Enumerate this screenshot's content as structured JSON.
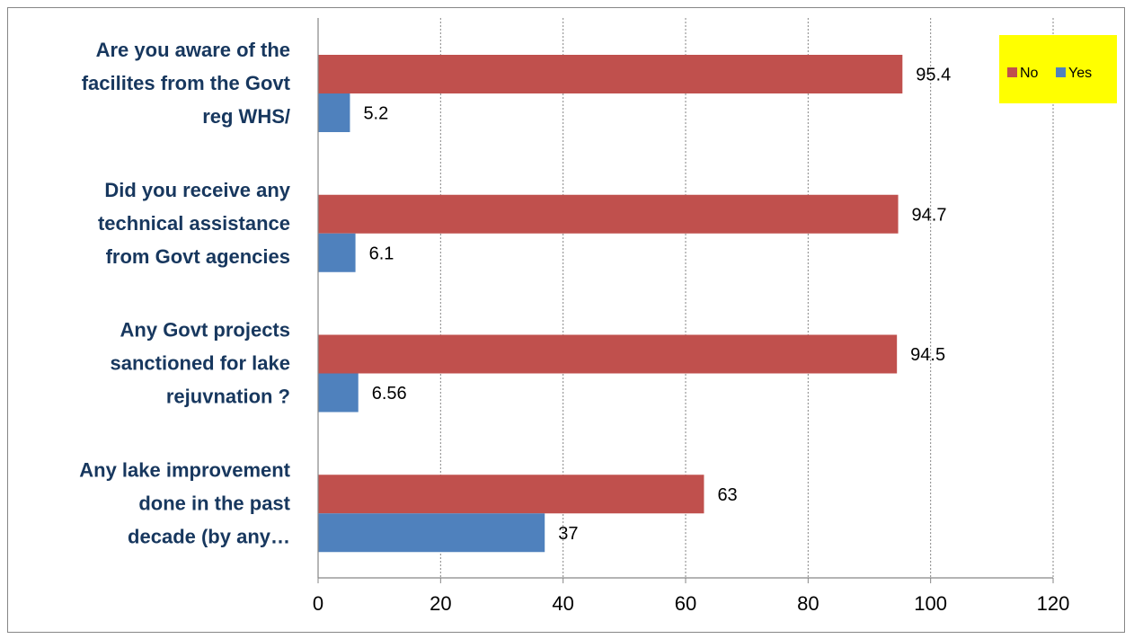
{
  "chart_data": {
    "type": "bar",
    "orientation": "horizontal",
    "categories": [
      [
        "Are you aware of the",
        "facilites from the Govt",
        "reg WHS/"
      ],
      [
        "Did you receive any",
        "technical assistance",
        "from Govt agencies"
      ],
      [
        "Any Govt projects",
        "sanctioned for lake",
        "rejuvnation ?"
      ],
      [
        "Any lake improvement",
        "done in the past",
        "decade (by any…"
      ]
    ],
    "series": [
      {
        "name": "No",
        "color": "#c0504d",
        "values": [
          95.4,
          94.7,
          94.5,
          63
        ],
        "labels": [
          "95.4",
          "94.7",
          "94.5",
          "63"
        ]
      },
      {
        "name": "Yes",
        "color": "#4f81bd",
        "values": [
          5.2,
          6.1,
          6.56,
          37
        ],
        "labels": [
          "5.2",
          "6.1",
          "6.56",
          "37"
        ]
      }
    ],
    "xlim": [
      0,
      120
    ],
    "ticks": [
      "0",
      "20",
      "40",
      "60",
      "80",
      "100",
      "120"
    ],
    "grid": true,
    "legend": {
      "position": "top-right",
      "background": "#ffff00"
    }
  }
}
